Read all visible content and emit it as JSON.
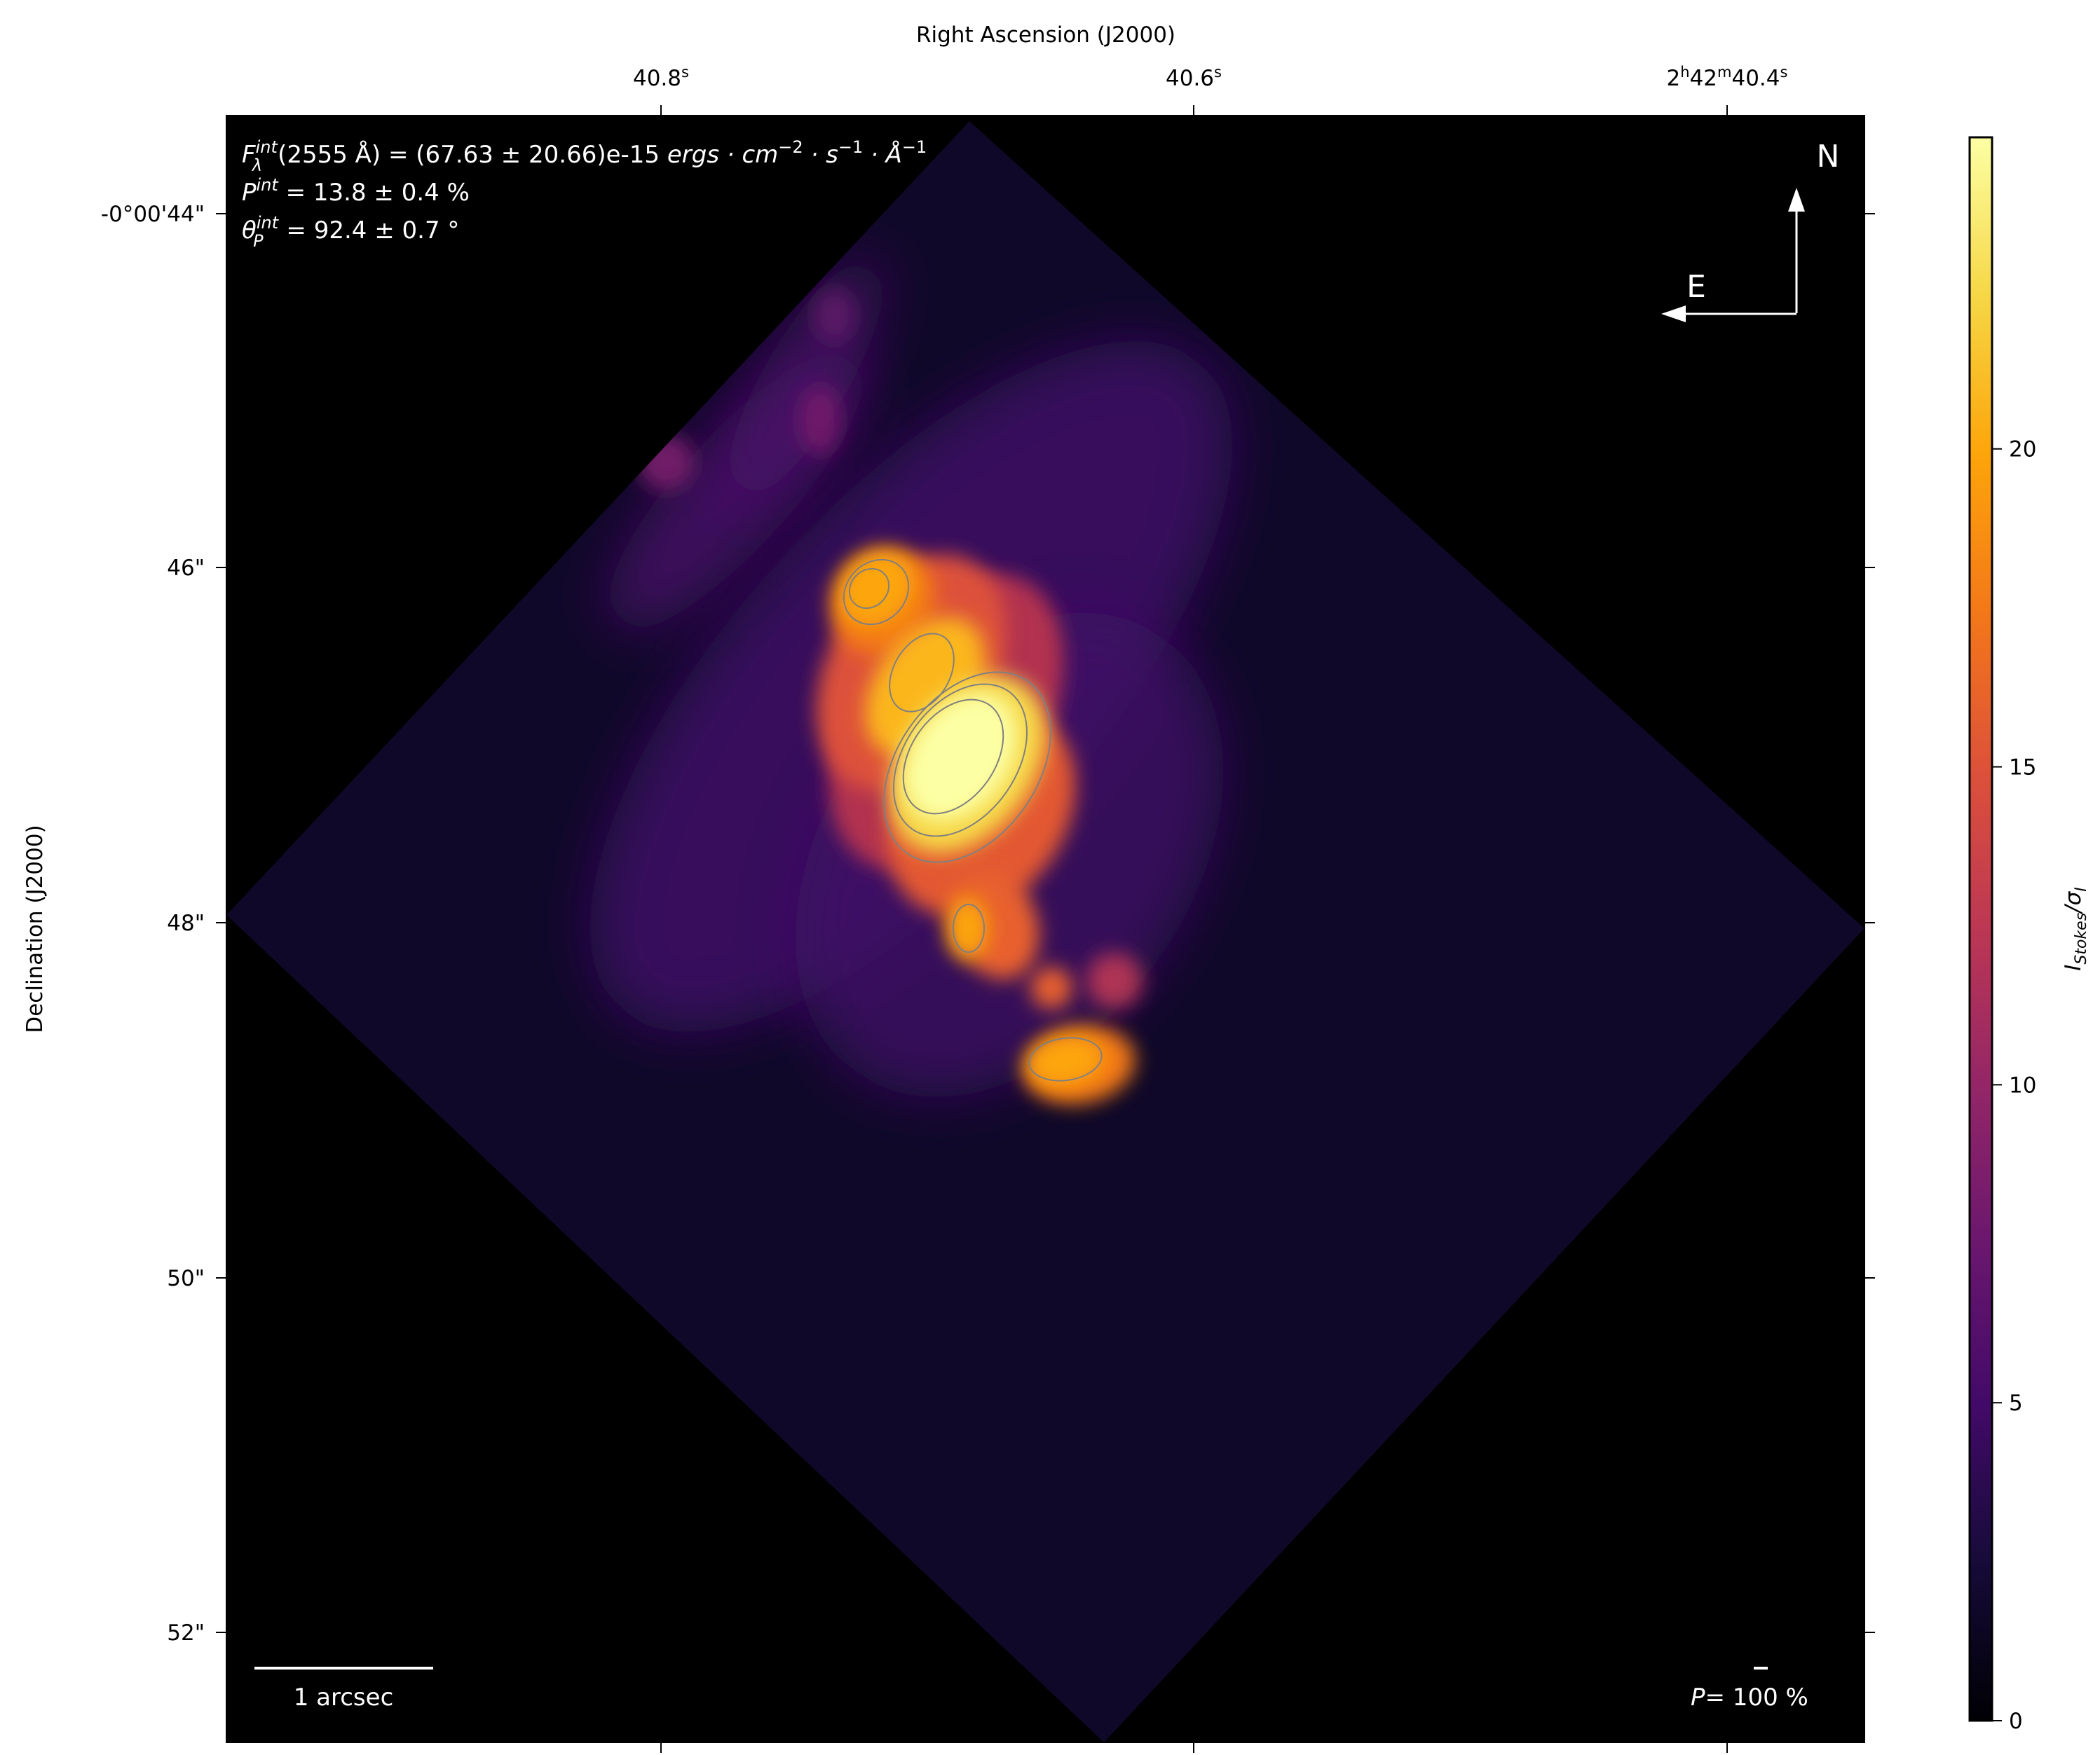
{
  "chart_data": {
    "type": "heatmap",
    "xlabel": "Right Ascension (J2000)",
    "ylabel": "Declination (J2000)",
    "x_ticks": [
      {
        "main": "40.8",
        "sup": "s"
      },
      {
        "main": "40.6",
        "sup": "s"
      },
      {
        "main": "2h42m40.4",
        "sup": "s",
        "parts": [
          "2",
          "h",
          "42",
          "m",
          "40.4",
          "s"
        ]
      }
    ],
    "y_ticks": [
      "-0°00'44\"",
      "46\"",
      "48\"",
      "50\"",
      "52\""
    ],
    "colorbar": {
      "label": "I_Stokes/σ_I",
      "label_main": "I",
      "label_sub": "Stokes",
      "label_sep": "/σ",
      "label_sub2": "I",
      "range": [
        0,
        24.9
      ],
      "ticks": [
        "0",
        "5",
        "10",
        "15",
        "20"
      ],
      "tick_values": [
        0,
        5,
        10,
        15,
        20
      ],
      "colormap": "inferno"
    },
    "annotations": {
      "flux": {
        "sym": "F",
        "sup": "int",
        "sub": "λ",
        "text": "(2555 Å) = (67.63 ± 20.66)e-15 ",
        "units": "ergs · cm",
        "u1": "−2",
        "u2": " · s",
        "u3": "−1",
        "u4": " · Å",
        "u5": "−1"
      },
      "pol": {
        "sym": "P",
        "sup": "int",
        "text": " = 13.8 ± 0.4 %"
      },
      "angle": {
        "sym": "θ",
        "sup": "int",
        "sub": "P",
        "text": " = 92.4 ± 0.7 °"
      }
    },
    "compass": {
      "north": "N",
      "east": "E"
    },
    "scale_bar": "1 arcsec",
    "pol_scale": {
      "sym": "P",
      "text": "= 100 %"
    },
    "background_color": "#000000",
    "contour_color": "#808080"
  }
}
